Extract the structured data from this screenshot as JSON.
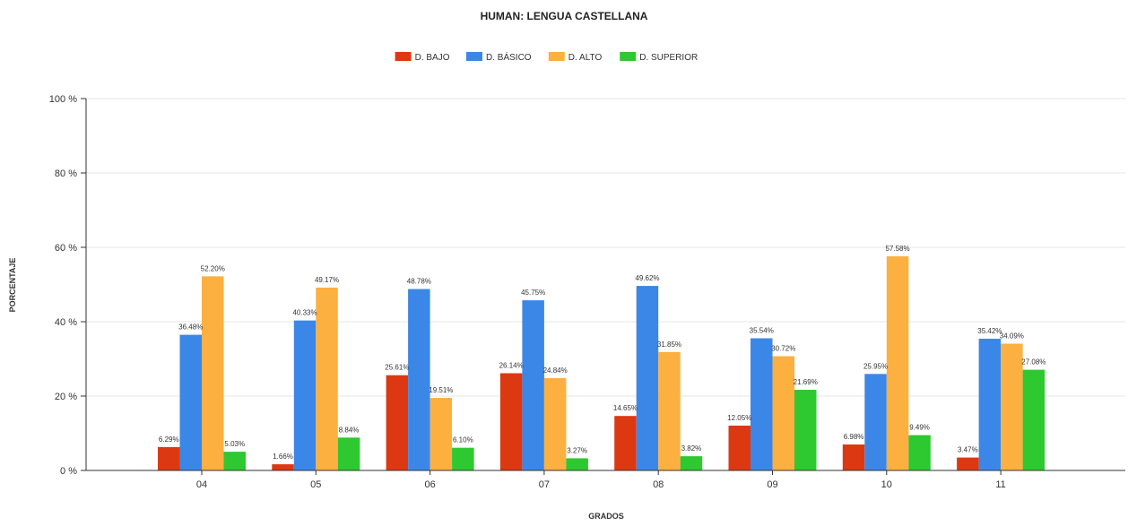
{
  "chart_data": {
    "type": "bar",
    "title": "HUMAN: LENGUA CASTELLANA",
    "xlabel": "GRADOS",
    "ylabel": "PORCENTAJE",
    "ylim": [
      0,
      100
    ],
    "yticks": [
      "0 %",
      "20 %",
      "40 %",
      "60 %",
      "80 %",
      "100 %"
    ],
    "grid": true,
    "legend_position": "top",
    "categories": [
      "04",
      "05",
      "06",
      "07",
      "08",
      "09",
      "10",
      "11"
    ],
    "series": [
      {
        "name": "D. BAJO",
        "color": "#dc3912",
        "values": [
          6.29,
          1.66,
          25.61,
          26.14,
          14.65,
          12.05,
          6.98,
          3.47
        ],
        "labels": [
          "6.29%",
          "1.66%",
          "25.61%",
          "26.14%",
          "14.65%",
          "12.05%",
          "6.98%",
          "3.47%"
        ]
      },
      {
        "name": "D. BÁSICO",
        "color": "#3b87e8",
        "values": [
          36.48,
          40.33,
          48.78,
          45.75,
          49.62,
          35.54,
          25.95,
          35.42
        ],
        "labels": [
          "36.48%",
          "40.33%",
          "48.78%",
          "45.75%",
          "49.62%",
          "35.54%",
          "25.95%",
          "35.42%"
        ]
      },
      {
        "name": "D. ALTO",
        "color": "#fbb040",
        "values": [
          52.2,
          49.17,
          19.51,
          24.84,
          31.85,
          30.72,
          57.58,
          34.09
        ],
        "labels": [
          "52.20%",
          "49.17%",
          "19.51%",
          "24.84%",
          "31.85%",
          "30.72%",
          "57.58%",
          "34.09%"
        ]
      },
      {
        "name": "D. SUPERIOR",
        "color": "#2ec830",
        "values": [
          5.03,
          8.84,
          6.1,
          3.27,
          3.82,
          21.69,
          9.49,
          27.08
        ],
        "labels": [
          "5.03%",
          "8.84%",
          "6.10%",
          "3.27%",
          "3.82%",
          "21.69%",
          "9.49%",
          "27.08%"
        ]
      }
    ]
  }
}
